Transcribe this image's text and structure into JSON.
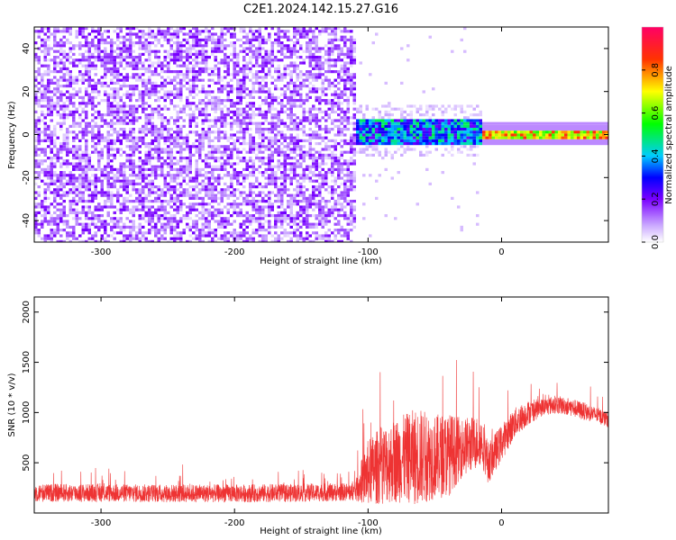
{
  "title": "C2E1.2024.142.15.27.G16",
  "chart_data": [
    {
      "type": "heatmap",
      "xlabel": "Height of straight line (km)",
      "ylabel": "Frequency (Hz)",
      "xlim": [
        -350,
        80
      ],
      "ylim": [
        -50,
        50
      ],
      "xticks": [
        -300,
        -200,
        -100,
        0
      ],
      "xtick_labels": [
        "-300",
        "-200",
        "-100",
        "0"
      ],
      "yticks": [
        -40,
        -20,
        0,
        20,
        40
      ],
      "ytick_labels": [
        "-40",
        "-20",
        "0",
        "20",
        "40"
      ],
      "grid": false,
      "colorbar": {
        "label": "Normalized spectral amplitude",
        "range": [
          0,
          1
        ],
        "ticks": [
          0.0,
          0.2,
          0.4,
          0.6,
          0.8
        ],
        "tick_labels": [
          "0.0",
          "0.2",
          "0.4",
          "0.6",
          "0.8"
        ]
      },
      "regions": [
        {
          "x_range": [
            -350,
            -110
          ],
          "description_value": "broadband noise across all frequencies",
          "typical_amplitude": 0.15
        },
        {
          "x_range": [
            -110,
            -15
          ],
          "center_frequency": 2,
          "bandwidth": 12,
          "typical_amplitude": 0.4
        },
        {
          "x_range": [
            -15,
            80
          ],
          "center_frequency": 1,
          "bandwidth": 4,
          "typical_amplitude": 0.8
        }
      ]
    },
    {
      "type": "line",
      "xlabel": "Height of straight line (km)",
      "ylabel": "SNR (10 * v/v)",
      "xlim": [
        -350,
        80
      ],
      "ylim": [
        0,
        2150
      ],
      "xticks": [
        -300,
        -200,
        -100,
        0
      ],
      "xtick_labels": [
        "-300",
        "-200",
        "-100",
        "0"
      ],
      "yticks": [
        500,
        1000,
        1500,
        2000
      ],
      "ytick_labels": [
        "500",
        "1000",
        "1500",
        "2000"
      ],
      "grid": false,
      "series_color": "#ee3333",
      "envelope": {
        "x": [
          -350,
          -300,
          -250,
          -200,
          -150,
          -110,
          -100,
          -90,
          -80,
          -70,
          -65,
          -60,
          -50,
          -40,
          -30,
          -20,
          -15,
          -10,
          0,
          10,
          20,
          30,
          40,
          50,
          60,
          70,
          80
        ],
        "base": [
          200,
          200,
          195,
          195,
          200,
          210,
          400,
          480,
          520,
          550,
          560,
          560,
          560,
          580,
          650,
          700,
          720,
          500,
          700,
          900,
          1000,
          1050,
          1080,
          1060,
          1020,
          980,
          930
        ],
        "spread": [
          150,
          150,
          150,
          150,
          150,
          150,
          550,
          650,
          700,
          750,
          800,
          800,
          700,
          700,
          500,
          450,
          400,
          350,
          300,
          250,
          200,
          150,
          150,
          150,
          150,
          130,
          130
        ]
      }
    }
  ]
}
